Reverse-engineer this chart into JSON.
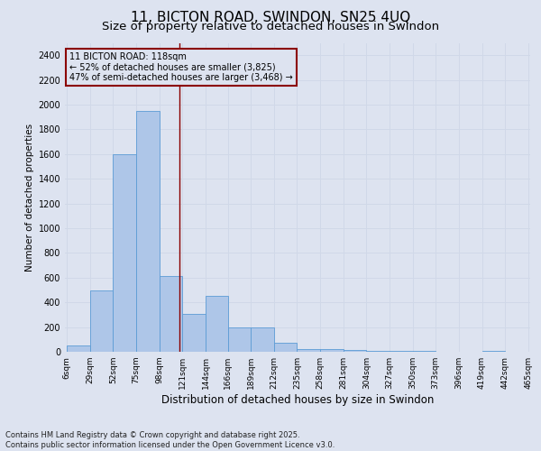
{
  "title": "11, BICTON ROAD, SWINDON, SN25 4UQ",
  "subtitle": "Size of property relative to detached houses in Swindon",
  "xlabel": "Distribution of detached houses by size in Swindon",
  "ylabel": "Number of detached properties",
  "footnote": "Contains HM Land Registry data © Crown copyright and database right 2025.\nContains public sector information licensed under the Open Government Licence v3.0.",
  "bin_edges": [
    6,
    29,
    52,
    75,
    98,
    121,
    144,
    166,
    189,
    212,
    235,
    258,
    281,
    304,
    327,
    350,
    373,
    396,
    419,
    442,
    465
  ],
  "bar_heights": [
    50,
    500,
    1600,
    1950,
    610,
    305,
    450,
    200,
    195,
    75,
    25,
    25,
    12,
    10,
    5,
    5,
    3,
    0,
    10,
    0
  ],
  "bar_color": "#aec6e8",
  "bar_edge_color": "#5b9bd5",
  "property_value": 118,
  "vline_color": "#8b0000",
  "annotation_box_color": "#8b0000",
  "annotation_line1": "11 BICTON ROAD: 118sqm",
  "annotation_line2": "← 52% of detached houses are smaller (3,825)",
  "annotation_line3": "47% of semi-detached houses are larger (3,468) →",
  "ylim": [
    0,
    2500
  ],
  "yticks": [
    0,
    200,
    400,
    600,
    800,
    1000,
    1200,
    1400,
    1600,
    1800,
    2000,
    2200,
    2400
  ],
  "grid_color": "#d0d8e8",
  "bg_color": "#dde3f0",
  "title_fontsize": 11,
  "subtitle_fontsize": 9.5,
  "footnote_fontsize": 6.0
}
